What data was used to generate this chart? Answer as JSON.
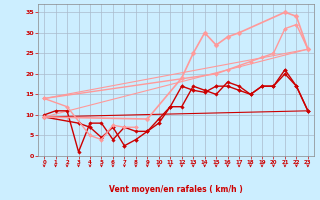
{
  "background_color": "#cceeff",
  "grid_color": "#aabbcc",
  "xlabel": "Vent moyen/en rafales ( km/h )",
  "xlabel_color": "#cc0000",
  "tick_color": "#cc0000",
  "xlim": [
    -0.5,
    23.5
  ],
  "ylim": [
    0,
    37
  ],
  "yticks": [
    0,
    5,
    10,
    15,
    20,
    25,
    30,
    35
  ],
  "xticks": [
    0,
    1,
    2,
    3,
    4,
    5,
    6,
    7,
    8,
    9,
    10,
    11,
    12,
    13,
    14,
    15,
    16,
    17,
    18,
    19,
    20,
    21,
    22,
    23
  ],
  "series": [
    {
      "x": [
        0,
        3,
        4,
        5,
        6,
        7,
        8,
        9,
        10,
        11,
        12,
        13,
        14,
        15,
        16,
        17,
        18,
        19,
        20,
        21,
        22,
        23
      ],
      "y": [
        9.5,
        8,
        7,
        4.5,
        7,
        2.5,
        4,
        6,
        8,
        12,
        17,
        16,
        15.5,
        17,
        17,
        16,
        15,
        17,
        17,
        21,
        17,
        11
      ],
      "color": "#cc0000",
      "lw": 1.0,
      "marker": "D",
      "ms": 2.0
    },
    {
      "x": [
        0,
        1,
        2,
        3,
        4,
        5,
        6,
        7,
        8,
        9,
        10,
        11,
        12,
        13,
        14,
        15,
        16,
        17,
        18,
        19,
        20,
        21,
        22,
        23
      ],
      "y": [
        10,
        11,
        11,
        1,
        8,
        8,
        4,
        7,
        6,
        6,
        9,
        12,
        12,
        17,
        16,
        15,
        18,
        17,
        15,
        17,
        17,
        20,
        17,
        11
      ],
      "color": "#cc0000",
      "lw": 1.0,
      "marker": "D",
      "ms": 1.8
    },
    {
      "x": [
        0,
        23
      ],
      "y": [
        9.5,
        11
      ],
      "color": "#cc0000",
      "lw": 0.8,
      "marker": null,
      "ms": 0
    },
    {
      "x": [
        0,
        9,
        12,
        13,
        14,
        15,
        16,
        17,
        21,
        22,
        23
      ],
      "y": [
        9.5,
        9,
        19,
        25,
        30,
        27,
        29,
        30,
        35,
        34,
        26
      ],
      "color": "#ff9999",
      "lw": 1.2,
      "marker": "D",
      "ms": 2.5
    },
    {
      "x": [
        0,
        15,
        16,
        17,
        18,
        19,
        20,
        21,
        22,
        23
      ],
      "y": [
        14,
        20,
        21,
        22,
        23,
        24,
        25,
        31,
        32,
        26
      ],
      "color": "#ff9999",
      "lw": 1.0,
      "marker": "D",
      "ms": 2.0
    },
    {
      "x": [
        0,
        2,
        4,
        5,
        6,
        7,
        8
      ],
      "y": [
        14,
        12,
        5,
        4,
        7.5,
        7,
        7
      ],
      "color": "#ff9999",
      "lw": 1.0,
      "marker": "D",
      "ms": 2.0
    },
    {
      "x": [
        0,
        23
      ],
      "y": [
        9.5,
        26
      ],
      "color": "#ff9999",
      "lw": 0.8,
      "marker": null,
      "ms": 0
    },
    {
      "x": [
        0,
        23
      ],
      "y": [
        14,
        26
      ],
      "color": "#ff9999",
      "lw": 0.8,
      "marker": null,
      "ms": 0
    }
  ],
  "arrows": [
    0,
    1,
    2,
    3,
    4,
    5,
    6,
    7,
    8,
    9,
    10,
    11,
    12,
    13,
    14,
    15,
    16,
    17,
    18,
    19,
    20,
    21,
    22,
    23
  ],
  "arrow_color": "#cc0000"
}
